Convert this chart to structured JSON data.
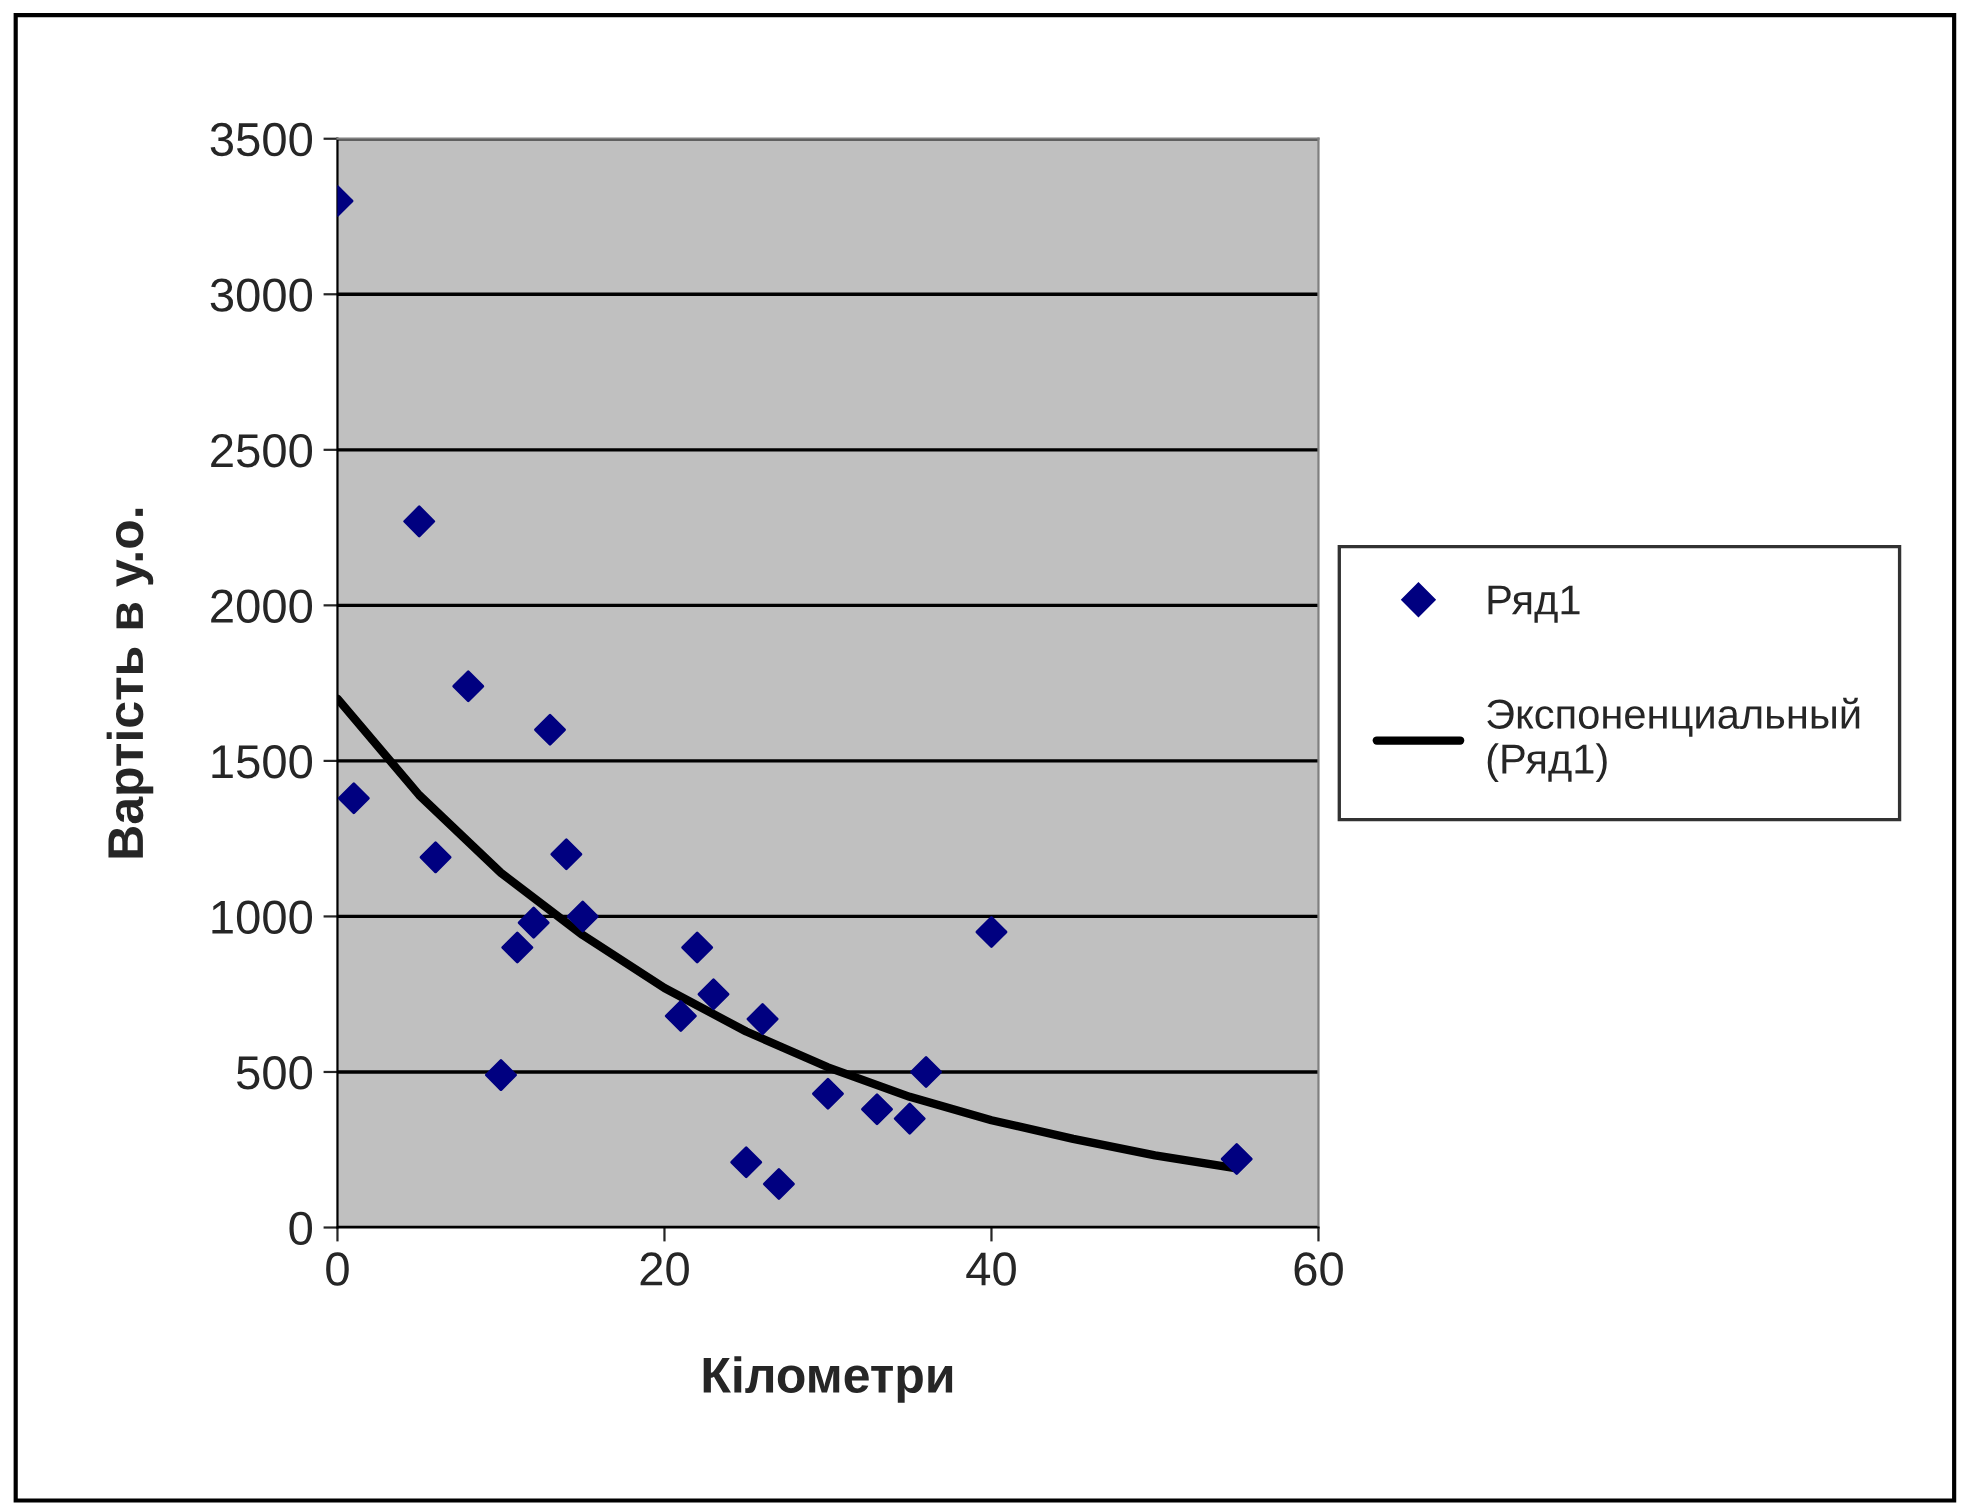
{
  "chart_data": {
    "type": "scatter",
    "xlabel": "Кілометри",
    "ylabel": "Вартість в у.о.",
    "xlim": [
      0,
      60
    ],
    "xticks": [
      0,
      20,
      40,
      60
    ],
    "ylim": [
      0,
      3500
    ],
    "yticks": [
      0,
      500,
      1000,
      1500,
      2000,
      2500,
      3000,
      3500
    ],
    "grid": "y",
    "legend": "right",
    "series": [
      {
        "name": "Ряд1",
        "marker": "diamond",
        "color": "#000080",
        "x": [
          0,
          1,
          5,
          6,
          8,
          10,
          11,
          12,
          13,
          14,
          15,
          21,
          22,
          23,
          25,
          26,
          27,
          30,
          33,
          35,
          36,
          40,
          55
        ],
        "values": [
          3300,
          1380,
          2270,
          1190,
          1740,
          490,
          900,
          980,
          1600,
          1200,
          1000,
          680,
          900,
          750,
          210,
          670,
          140,
          430,
          380,
          350,
          500,
          950,
          220
        ]
      },
      {
        "name": "Экспоненциальный\n(Ряд1)",
        "type": "line",
        "marker": "none",
        "line_style": "solid",
        "color": "#000000",
        "x": [
          0,
          5,
          10,
          15,
          20,
          25,
          30,
          35,
          40,
          45,
          50,
          55
        ],
        "values": [
          1700,
          1390,
          1140,
          940,
          770,
          630,
          515,
          420,
          345,
          285,
          232,
          190
        ]
      }
    ]
  }
}
